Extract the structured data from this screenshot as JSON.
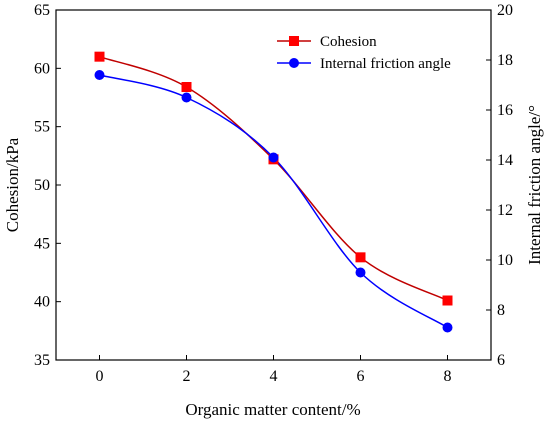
{
  "chart_data": {
    "type": "line",
    "xlabel": "Organic matter content/%",
    "ylabel_left": "Cohesion/kPa",
    "ylabel_right": "Internal friction angle/°",
    "xlim": [
      -1,
      9
    ],
    "ylim_left": [
      35,
      65
    ],
    "ylim_right": [
      6,
      20
    ],
    "x_ticks": [
      0,
      2,
      4,
      6,
      8
    ],
    "y_ticks_left": [
      35,
      40,
      45,
      50,
      55,
      60,
      65
    ],
    "y_ticks_right": [
      6,
      8,
      10,
      12,
      14,
      16,
      18,
      20
    ],
    "legend_position": "top-right",
    "grid": false,
    "series": [
      {
        "name": "Cohesion",
        "axis": "left",
        "marker": "square",
        "color": "#ff0000",
        "line_color": "#c00000",
        "x": [
          0,
          2,
          4,
          6,
          8
        ],
        "values": [
          61.0,
          58.4,
          52.2,
          43.8,
          40.1
        ]
      },
      {
        "name": "Internal friction angle",
        "axis": "right",
        "marker": "circle",
        "color": "#0000ff",
        "line_color": "#0000ff",
        "x": [
          0,
          2,
          4,
          6,
          8
        ],
        "values": [
          17.4,
          16.5,
          14.1,
          9.5,
          7.3
        ]
      }
    ]
  }
}
